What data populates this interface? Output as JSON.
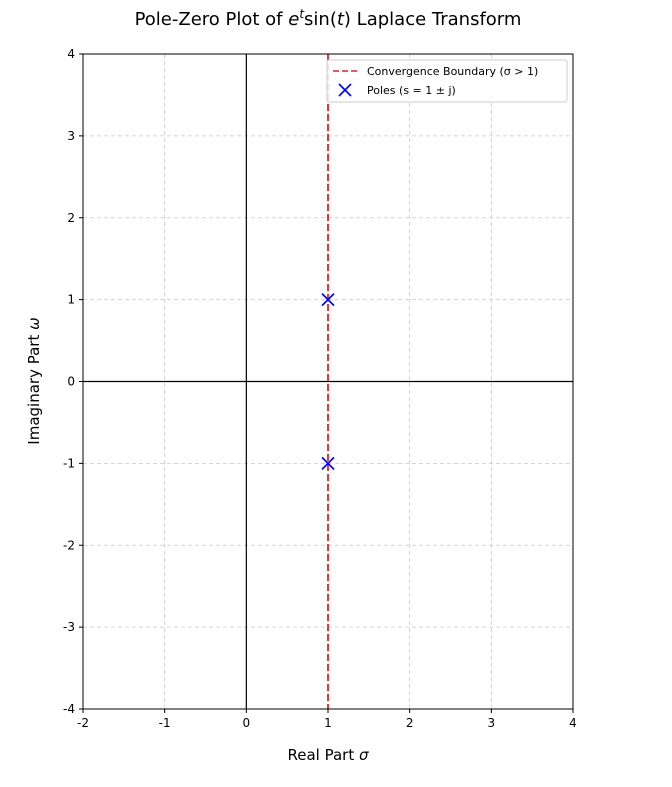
{
  "chart_data": {
    "type": "scatter",
    "title": {
      "prefix": "Pole-Zero Plot of ",
      "math_base": "e",
      "math_sup": "t",
      "math_func": "sin(",
      "math_arg": "t",
      "math_close": ")",
      "suffix": " Laplace Transform"
    },
    "xlabel": {
      "text": "Real Part ",
      "symbol": "σ"
    },
    "ylabel": {
      "text": "Imaginary Part ",
      "symbol": "ω"
    },
    "xlim": [
      -2,
      4
    ],
    "ylim": [
      -4,
      4
    ],
    "xticks": [
      -2,
      -1,
      0,
      1,
      2,
      3,
      4
    ],
    "yticks": [
      -4,
      -3,
      -2,
      -1,
      0,
      1,
      2,
      3,
      4
    ],
    "grid": true,
    "reference_lines": {
      "x": 0,
      "y": 0,
      "color": "#000000"
    },
    "boundary": {
      "name": "Convergence Boundary (σ > 1)",
      "x": 1,
      "color": "#d62728",
      "style": "dashed"
    },
    "poles": {
      "name": "Poles (s = 1 ± j)",
      "marker": "x",
      "color": "#0000ff",
      "points": [
        {
          "x": 1,
          "y": 1
        },
        {
          "x": 1,
          "y": -1
        }
      ]
    },
    "legend": "top-right"
  }
}
